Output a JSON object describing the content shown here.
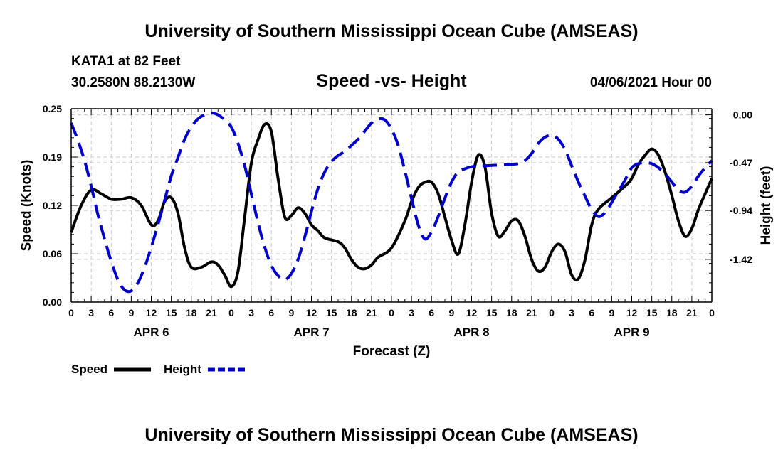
{
  "header": {
    "title": "University of Southern Mississippi Ocean Cube (AMSEAS)",
    "station": "KATA1 at 82 Feet",
    "coordinates": "30.2580N  88.2130W",
    "datetime": "04/06/2021 Hour 00"
  },
  "footer": {
    "title": "University of Southern Mississippi Ocean Cube (AMSEAS)"
  },
  "chart_data": {
    "type": "line",
    "title": "Speed -vs- Height",
    "xlabel": "Forecast (Z)",
    "ylabel_left": "Speed (Knots)",
    "ylabel_right": "Height (feet)",
    "x_range_hours": [
      0,
      96
    ],
    "x_tick_step_hours": 3,
    "x_tick_labels": [
      "0",
      "3",
      "6",
      "9",
      "12",
      "15",
      "18",
      "21",
      "0",
      "3",
      "6",
      "9",
      "12",
      "15",
      "18",
      "21",
      "0",
      "3",
      "6",
      "9",
      "12",
      "15",
      "18",
      "21",
      "0",
      "3",
      "6",
      "9",
      "12",
      "15",
      "18",
      "21",
      "0"
    ],
    "day_labels": [
      {
        "label": "APR 6",
        "hour": 12
      },
      {
        "label": "APR 7",
        "hour": 36
      },
      {
        "label": "APR 8",
        "hour": 60
      },
      {
        "label": "APR 9",
        "hour": 84
      }
    ],
    "ylim_left": [
      0,
      0.25
    ],
    "yticks_left": [
      "0.00",
      "0.06",
      "0.12",
      "0.19",
      "0.25"
    ],
    "ylim_right": [
      -1.84,
      0.06
    ],
    "yticks_right": [
      {
        "label": "0.00",
        "value": 0.0
      },
      {
        "label": "-0.47",
        "value": -0.47
      },
      {
        "label": "-0.94",
        "value": -0.94
      },
      {
        "label": "-1.42",
        "value": -1.42
      }
    ],
    "grid": true,
    "legend": [
      {
        "label": "Speed",
        "color": "#000000",
        "style": "solid"
      },
      {
        "label": "Height",
        "color": "#0000cc",
        "style": "dashed"
      }
    ],
    "series": [
      {
        "name": "Speed",
        "axis": "left",
        "color": "#000000",
        "style": "solid",
        "points": [
          [
            0,
            0.09
          ],
          [
            1.5,
            0.125
          ],
          [
            3,
            0.145
          ],
          [
            4.5,
            0.14
          ],
          [
            6,
            0.133
          ],
          [
            7.5,
            0.133
          ],
          [
            9,
            0.135
          ],
          [
            10.5,
            0.125
          ],
          [
            12,
            0.1
          ],
          [
            13,
            0.105
          ],
          [
            14,
            0.13
          ],
          [
            15,
            0.135
          ],
          [
            16,
            0.115
          ],
          [
            17,
            0.07
          ],
          [
            18,
            0.045
          ],
          [
            19.5,
            0.045
          ],
          [
            21,
            0.052
          ],
          [
            22,
            0.048
          ],
          [
            23,
            0.035
          ],
          [
            24,
            0.02
          ],
          [
            25,
            0.04
          ],
          [
            26,
            0.11
          ],
          [
            27,
            0.18
          ],
          [
            28,
            0.21
          ],
          [
            29,
            0.23
          ],
          [
            30,
            0.22
          ],
          [
            31,
            0.16
          ],
          [
            32,
            0.11
          ],
          [
            33,
            0.112
          ],
          [
            34,
            0.122
          ],
          [
            35,
            0.115
          ],
          [
            36,
            0.1
          ],
          [
            37,
            0.092
          ],
          [
            38,
            0.083
          ],
          [
            40,
            0.078
          ],
          [
            41,
            0.07
          ],
          [
            42,
            0.055
          ],
          [
            43,
            0.045
          ],
          [
            44,
            0.043
          ],
          [
            45,
            0.048
          ],
          [
            46,
            0.058
          ],
          [
            48,
            0.07
          ],
          [
            50,
            0.105
          ],
          [
            51,
            0.13
          ],
          [
            52,
            0.148
          ],
          [
            53,
            0.155
          ],
          [
            54,
            0.155
          ],
          [
            55,
            0.14
          ],
          [
            56,
            0.11
          ],
          [
            57,
            0.08
          ],
          [
            58,
            0.062
          ],
          [
            59,
            0.1
          ],
          [
            60,
            0.155
          ],
          [
            61,
            0.19
          ],
          [
            62,
            0.175
          ],
          [
            63,
            0.115
          ],
          [
            64,
            0.085
          ],
          [
            65,
            0.092
          ],
          [
            66,
            0.105
          ],
          [
            67,
            0.105
          ],
          [
            68,
            0.085
          ],
          [
            69,
            0.055
          ],
          [
            70,
            0.04
          ],
          [
            71,
            0.045
          ],
          [
            72,
            0.065
          ],
          [
            73,
            0.075
          ],
          [
            74,
            0.065
          ],
          [
            75,
            0.035
          ],
          [
            76,
            0.03
          ],
          [
            77,
            0.055
          ],
          [
            78,
            0.1
          ],
          [
            79,
            0.12
          ],
          [
            81,
            0.135
          ],
          [
            83,
            0.15
          ],
          [
            84,
            0.16
          ],
          [
            85,
            0.178
          ],
          [
            86,
            0.19
          ],
          [
            87,
            0.198
          ],
          [
            88,
            0.19
          ],
          [
            89,
            0.168
          ],
          [
            90,
            0.138
          ],
          [
            91,
            0.105
          ],
          [
            92,
            0.085
          ],
          [
            93,
            0.095
          ],
          [
            94,
            0.12
          ],
          [
            95,
            0.14
          ],
          [
            96,
            0.16
          ]
        ]
      },
      {
        "name": "Height",
        "axis": "right",
        "color": "#0000cc",
        "style": "dashed",
        "points": [
          [
            0,
            -0.08
          ],
          [
            1,
            -0.25
          ],
          [
            2,
            -0.45
          ],
          [
            3,
            -0.7
          ],
          [
            4,
            -0.98
          ],
          [
            5,
            -1.22
          ],
          [
            6,
            -1.44
          ],
          [
            7,
            -1.62
          ],
          [
            8,
            -1.72
          ],
          [
            9,
            -1.73
          ],
          [
            10,
            -1.65
          ],
          [
            11,
            -1.5
          ],
          [
            12,
            -1.3
          ],
          [
            13,
            -1.08
          ],
          [
            14,
            -0.84
          ],
          [
            15,
            -0.6
          ],
          [
            16,
            -0.42
          ],
          [
            17,
            -0.24
          ],
          [
            18,
            -0.12
          ],
          [
            19,
            -0.04
          ],
          [
            20,
            0.0
          ],
          [
            21,
            0.02
          ],
          [
            22,
            0.0
          ],
          [
            23,
            -0.05
          ],
          [
            24,
            -0.12
          ],
          [
            25,
            -0.28
          ],
          [
            26,
            -0.5
          ],
          [
            27,
            -0.78
          ],
          [
            28,
            -1.06
          ],
          [
            29,
            -1.3
          ],
          [
            30,
            -1.48
          ],
          [
            31,
            -1.58
          ],
          [
            32,
            -1.62
          ],
          [
            33,
            -1.56
          ],
          [
            34,
            -1.42
          ],
          [
            35,
            -1.2
          ],
          [
            36,
            -0.95
          ],
          [
            37,
            -0.72
          ],
          [
            38,
            -0.56
          ],
          [
            39,
            -0.46
          ],
          [
            40,
            -0.4
          ],
          [
            41,
            -0.36
          ],
          [
            42,
            -0.3
          ],
          [
            43,
            -0.24
          ],
          [
            44,
            -0.16
          ],
          [
            45,
            -0.08
          ],
          [
            46,
            -0.04
          ],
          [
            47,
            -0.05
          ],
          [
            48,
            -0.14
          ],
          [
            49,
            -0.3
          ],
          [
            50,
            -0.55
          ],
          [
            51,
            -0.82
          ],
          [
            52,
            -1.08
          ],
          [
            53,
            -1.22
          ],
          [
            54,
            -1.15
          ],
          [
            55,
            -1.0
          ],
          [
            56,
            -0.82
          ],
          [
            57,
            -0.66
          ],
          [
            58,
            -0.56
          ],
          [
            59,
            -0.53
          ],
          [
            60,
            -0.51
          ],
          [
            62,
            -0.5
          ],
          [
            65,
            -0.49
          ],
          [
            67,
            -0.48
          ],
          [
            68,
            -0.45
          ],
          [
            69,
            -0.38
          ],
          [
            70,
            -0.28
          ],
          [
            71,
            -0.22
          ],
          [
            72,
            -0.2
          ],
          [
            73,
            -0.24
          ],
          [
            74,
            -0.34
          ],
          [
            75,
            -0.5
          ],
          [
            76,
            -0.66
          ],
          [
            77,
            -0.8
          ],
          [
            78,
            -0.93
          ],
          [
            79,
            -1.0
          ],
          [
            80,
            -0.96
          ],
          [
            81,
            -0.86
          ],
          [
            82,
            -0.75
          ],
          [
            83,
            -0.64
          ],
          [
            84,
            -0.52
          ],
          [
            85,
            -0.48
          ],
          [
            86,
            -0.47
          ],
          [
            87,
            -0.48
          ],
          [
            88,
            -0.52
          ],
          [
            89,
            -0.58
          ],
          [
            90,
            -0.66
          ],
          [
            91,
            -0.74
          ],
          [
            92,
            -0.76
          ],
          [
            93,
            -0.7
          ],
          [
            94,
            -0.6
          ],
          [
            95,
            -0.52
          ],
          [
            96,
            -0.45
          ]
        ]
      }
    ]
  }
}
